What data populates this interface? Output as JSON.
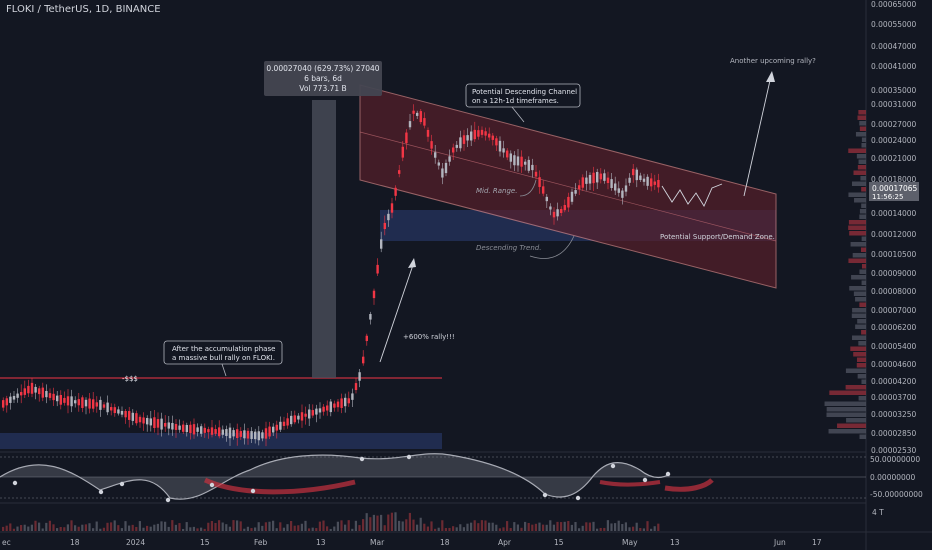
{
  "header": {
    "symbol": "FLOKI / TetherUS, 1D, BINANCE"
  },
  "chart_data": {
    "type": "candlestick",
    "price_axis": {
      "scale": "log",
      "ticks": [
        "0.00065000",
        "0.00055000",
        "0.00047000",
        "0.00041000",
        "0.00035000",
        "0.00031000",
        "0.00027000",
        "0.00024000",
        "0.00021000",
        "0.00018000",
        "0.00014000",
        "0.00012000",
        "0.00010500",
        "0.00009000",
        "0.00008000",
        "0.00007000",
        "0.00006200",
        "0.00005400",
        "0.00004600",
        "0.00004200",
        "0.00003700",
        "0.00003250",
        "0.00002850",
        "0.00002530"
      ],
      "current_price": "0.00017065",
      "countdown": "11:56:25"
    },
    "time_axis": {
      "ticks": [
        "ec",
        "18",
        "2024",
        "15",
        "Feb",
        "13",
        "Mar",
        "18",
        "Apr",
        "15",
        "May",
        "13",
        "Jun",
        "17"
      ]
    },
    "annotations": {
      "measure_box": [
        "0.00027040 (629.73%) 27040",
        "6 bars, 6d",
        "Vol 773.71 B"
      ],
      "channel_label": [
        "Potential Descending Channel",
        "on a 12h-1d timeframes."
      ],
      "upcoming_rally": "Another upcoming rally?",
      "mid_range": "Mid. Range.",
      "descending_trend": "Descending Trend.",
      "support_zone": "Potential Support/Demand Zone.",
      "rally_label": "+600% rally!!!",
      "accumulation_label": [
        "After the accumulation phase",
        "a massive bull rally on FLOKI."
      ],
      "liquidity_label": "-$$$"
    },
    "oscillator": {
      "ticks": [
        "50.00000000",
        "0.00000000",
        "-50.00000000"
      ]
    },
    "volume": {
      "tick": "4 T"
    },
    "colors": {
      "up": "#b2b5be",
      "down": "#f23645",
      "zone": "#2a3a6e",
      "channel": "#5c1f2a"
    }
  }
}
